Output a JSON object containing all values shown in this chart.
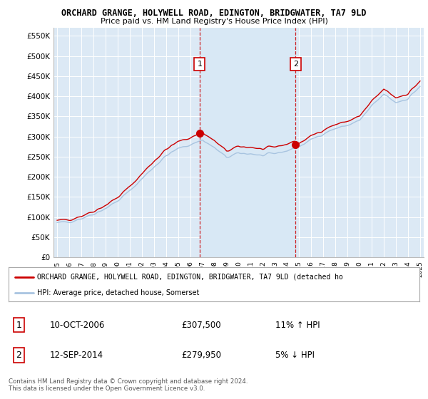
{
  "title1": "ORCHARD GRANGE, HOLYWELL ROAD, EDINGTON, BRIDGWATER, TA7 9LD",
  "title2": "Price paid vs. HM Land Registry's House Price Index (HPI)",
  "ylim": [
    0,
    570000
  ],
  "yticks": [
    0,
    50000,
    100000,
    150000,
    200000,
    250000,
    300000,
    350000,
    400000,
    450000,
    500000,
    550000
  ],
  "ytick_labels": [
    "£0",
    "£50K",
    "£100K",
    "£150K",
    "£200K",
    "£250K",
    "£300K",
    "£350K",
    "£400K",
    "£450K",
    "£500K",
    "£550K"
  ],
  "marker1_date": 2006.78,
  "marker1_price": 307500,
  "marker1_label": "1",
  "marker2_date": 2014.71,
  "marker2_price": 279950,
  "marker2_label": "2",
  "legend_line1": "ORCHARD GRANGE, HOLYWELL ROAD, EDINGTON, BRIDGWATER, TA7 9LD (detached ho",
  "legend_line2": "HPI: Average price, detached house, Somerset",
  "table_row1": [
    "1",
    "10-OCT-2006",
    "£307,500",
    "11% ↑ HPI"
  ],
  "table_row2": [
    "2",
    "12-SEP-2014",
    "£279,950",
    "5% ↓ HPI"
  ],
  "footer": "Contains HM Land Registry data © Crown copyright and database right 2024.\nThis data is licensed under the Open Government Licence v3.0.",
  "hpi_color": "#a8c4e0",
  "price_color": "#cc0000",
  "shade_color": "#d8e8f5",
  "vline_color": "#cc0000",
  "plot_bg_color": "#dce9f5",
  "grid_color": "#ffffff"
}
